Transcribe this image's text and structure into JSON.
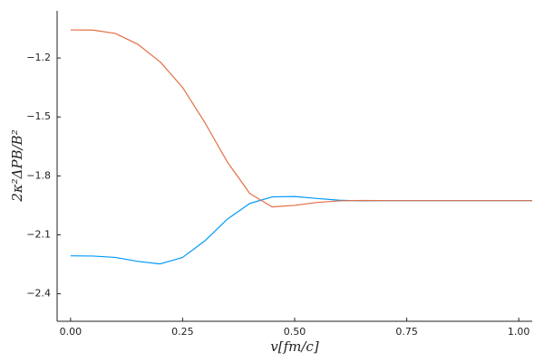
{
  "chart_data": {
    "type": "line",
    "x_label": "v[fm/c]",
    "y_label": "2κ²ΔPB/B²",
    "x": [
      0,
      0.05,
      0.1,
      0.15,
      0.2,
      0.25,
      0.3,
      0.35,
      0.4,
      0.45,
      0.5,
      0.55,
      0.6,
      0.65,
      0.7,
      0.75,
      0.8,
      0.85,
      0.9,
      0.95,
      1.0,
      1.03
    ],
    "series": [
      {
        "color": "#009af9",
        "values": [
          -2.207,
          -2.208,
          -2.215,
          -2.235,
          -2.248,
          -2.215,
          -2.13,
          -2.02,
          -1.94,
          -1.907,
          -1.905,
          -1.915,
          -1.924,
          -1.927,
          -1.926,
          -1.926,
          -1.926,
          -1.926,
          -1.926,
          -1.926,
          -1.926,
          -1.926
        ]
      },
      {
        "color": "#e26f46",
        "values": [
          -1.057,
          -1.058,
          -1.075,
          -1.13,
          -1.22,
          -1.35,
          -1.53,
          -1.73,
          -1.89,
          -1.958,
          -1.95,
          -1.935,
          -1.927,
          -1.925,
          -1.926,
          -1.926,
          -1.926,
          -1.926,
          -1.926,
          -1.926,
          -1.926,
          -1.926
        ]
      }
    ],
    "xlim": [
      -0.03,
      1.03
    ],
    "ylim": [
      -2.54,
      -0.96
    ],
    "xticks": [
      {
        "value": 0,
        "label": "0.00"
      },
      {
        "value": 0.25,
        "label": "0.25"
      },
      {
        "value": 0.5,
        "label": "0.50"
      },
      {
        "value": 0.75,
        "label": "0.75"
      },
      {
        "value": 1,
        "label": "1.00"
      }
    ],
    "yticks": [
      {
        "value": -2.4,
        "label": "−2.4"
      },
      {
        "value": -2.1,
        "label": "−2.1"
      },
      {
        "value": -1.8,
        "label": "−1.8"
      },
      {
        "value": -1.5,
        "label": "−1.5"
      },
      {
        "value": -1.2,
        "label": "−1.2"
      }
    ],
    "grid": false
  }
}
